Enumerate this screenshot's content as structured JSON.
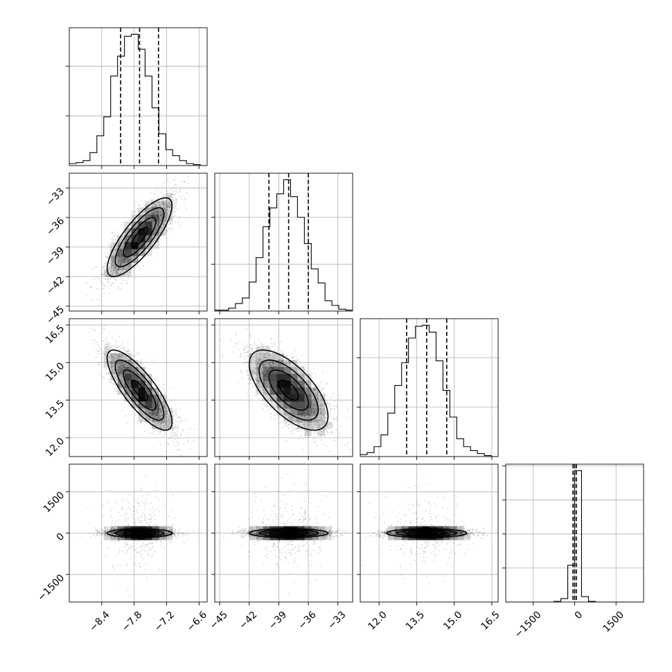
{
  "chart_data": {
    "type": "corner",
    "grid": true,
    "n_params": 4,
    "params": [
      {
        "range": [
          -9.0,
          -6.45
        ],
        "ticks": [
          -8.4,
          -7.8,
          -7.2,
          -6.6
        ],
        "tick_labels": [
          "−8.4",
          "−7.8",
          "−7.2",
          "−6.6"
        ],
        "mean": -7.7,
        "sigma": 0.3,
        "quantiles": [
          -8.05,
          -7.7,
          -7.35
        ],
        "hist_x": [
          -9.0,
          -6.45
        ],
        "hist_counts": [
          2,
          3,
          5,
          13,
          30,
          49,
          90,
          110,
          130,
          132,
          117,
          90,
          58,
          32,
          16,
          10,
          5,
          2,
          1,
          0
        ]
      },
      {
        "range": [
          -45.5,
          -31.5
        ],
        "ticks": [
          -45,
          -42,
          -39,
          -36,
          -33
        ],
        "tick_labels": [
          "−45",
          "−42",
          "−39",
          "−36",
          "−33"
        ],
        "mean": -38.0,
        "sigma": 2.0,
        "quantiles": [
          -40.0,
          -38.0,
          -36.0
        ],
        "hist_x": [
          -45.5,
          -31.5
        ],
        "hist_counts": [
          1,
          1,
          3,
          8,
          14,
          31,
          57,
          90,
          110,
          125,
          140,
          122,
          100,
          72,
          45,
          30,
          11,
          6,
          2,
          1
        ]
      },
      {
        "range": [
          11.25,
          16.75
        ],
        "ticks": [
          12.0,
          13.5,
          15.0,
          16.5
        ],
        "tick_labels": [
          "12.0",
          "13.5",
          "15.0",
          "16.5"
        ],
        "mean": 13.9,
        "sigma": 0.8,
        "quantiles": [
          13.1,
          13.9,
          14.7
        ],
        "hist_x": [
          11.25,
          16.75
        ],
        "hist_counts": [
          2,
          4,
          10,
          22,
          44,
          72,
          95,
          120,
          132,
          133,
          126,
          97,
          67,
          40,
          18,
          10,
          6,
          3,
          1,
          0
        ]
      },
      {
        "range": [
          -2500,
          2500
        ],
        "ticks": [
          -1500,
          0,
          1500
        ],
        "tick_labels": [
          "−1500",
          "0",
          "1500"
        ],
        "mean": 0,
        "sigma": 100,
        "quantiles": [
          -60,
          0,
          60
        ],
        "hist_x": [
          -2500,
          2500
        ],
        "hist_counts": [
          0,
          0,
          0,
          0,
          0,
          0,
          0,
          1,
          5,
          54,
          193,
          8,
          1,
          0,
          0,
          0,
          0,
          0,
          0,
          0
        ]
      }
    ],
    "correlations": [
      [
        0,
        1,
        0.8
      ],
      [
        0,
        2,
        -0.8
      ],
      [
        1,
        2,
        -0.65
      ],
      [
        0,
        3,
        0
      ],
      [
        1,
        3,
        0
      ],
      [
        2,
        3,
        0
      ]
    ]
  },
  "colors": {
    "hist": "#000000",
    "grid": "#b0b0b0",
    "cell": "#000000",
    "point": "#000000"
  }
}
